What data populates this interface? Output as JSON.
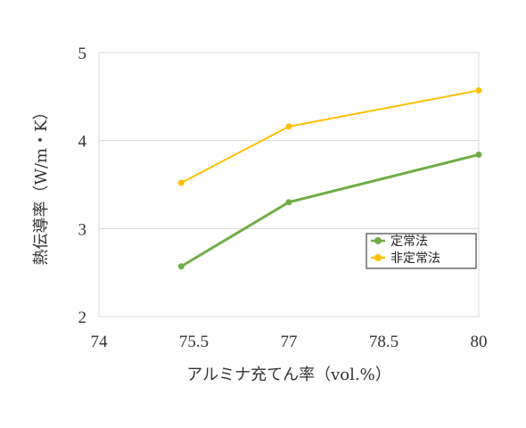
{
  "chart_data": {
    "type": "line",
    "title": "",
    "xlabel": "アルミナ充てん率（vol.%）",
    "ylabel": "熱伝導率（W/m・K）",
    "xlim": [
      74,
      80
    ],
    "ylim": [
      2,
      5
    ],
    "x_ticks": [
      "74",
      "75.5",
      "77",
      "78.5",
      "80"
    ],
    "y_ticks": [
      "2",
      "3",
      "4",
      "5"
    ],
    "grid": "horizontal",
    "legend_position": "right",
    "series": [
      {
        "name": "定常法",
        "color": "#70ad47",
        "points": [
          {
            "x": 75.3,
            "y": 2.57
          },
          {
            "x": 77,
            "y": 3.3
          },
          {
            "x": 80,
            "y": 3.84
          }
        ]
      },
      {
        "name": "非定常法",
        "color": "#ffc000",
        "points": [
          {
            "x": 75.3,
            "y": 3.52
          },
          {
            "x": 77,
            "y": 4.16
          },
          {
            "x": 80,
            "y": 4.57
          }
        ]
      }
    ]
  }
}
